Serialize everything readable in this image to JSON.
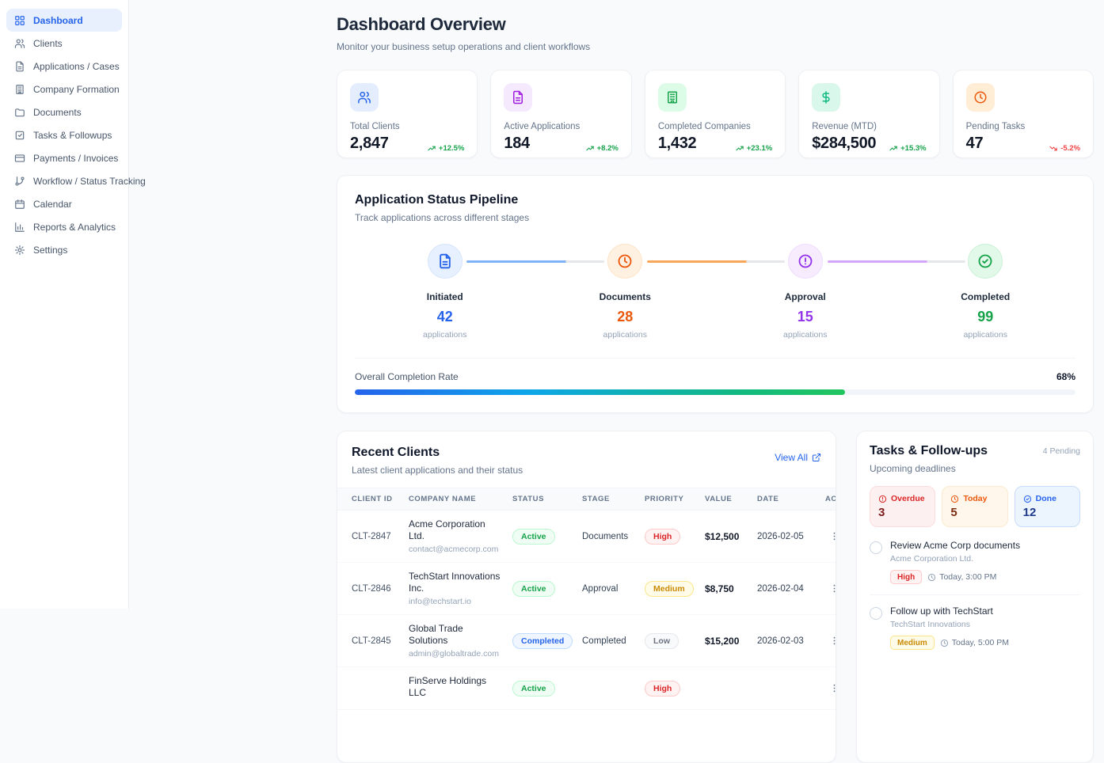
{
  "sidebar": {
    "items": [
      {
        "label": "Dashboard",
        "icon": "layout-grid-icon",
        "active": true
      },
      {
        "label": "Clients",
        "icon": "users-icon",
        "active": false
      },
      {
        "label": "Applications / Cases",
        "icon": "file-text-icon",
        "active": false
      },
      {
        "label": "Company Formation",
        "icon": "building-icon",
        "active": false
      },
      {
        "label": "Documents",
        "icon": "folder-icon",
        "active": false
      },
      {
        "label": "Tasks & Followups",
        "icon": "check-square-icon",
        "active": false
      },
      {
        "label": "Payments / Invoices",
        "icon": "credit-card-icon",
        "active": false
      },
      {
        "label": "Workflow / Status Tracking",
        "icon": "git-branch-icon",
        "active": false
      },
      {
        "label": "Calendar",
        "icon": "calendar-icon",
        "active": false
      },
      {
        "label": "Reports & Analytics",
        "icon": "bar-chart-icon",
        "active": false
      },
      {
        "label": "Settings",
        "icon": "gear-icon",
        "active": false
      }
    ]
  },
  "header": {
    "title": "Dashboard Overview",
    "subtitle": "Monitor your business setup operations and client workflows"
  },
  "stats": [
    {
      "label": "Total Clients",
      "value": "2,847",
      "trend": "+12.5%",
      "direction": "up",
      "icon": "users-icon",
      "accent": "#2563eb"
    },
    {
      "label": "Active Applications",
      "value": "184",
      "trend": "+8.2%",
      "direction": "up",
      "icon": "file-text-icon",
      "accent": "#a21ce0"
    },
    {
      "label": "Completed Companies",
      "value": "1,432",
      "trend": "+23.1%",
      "direction": "up",
      "icon": "building-icon",
      "accent": "#16a34a"
    },
    {
      "label": "Revenue (MTD)",
      "value": "$284,500",
      "trend": "+15.3%",
      "direction": "up",
      "icon": "dollar-icon",
      "accent": "#10b981"
    },
    {
      "label": "Pending Tasks",
      "value": "47",
      "trend": "-5.2%",
      "direction": "down",
      "icon": "clock-icon",
      "accent": "#ea580c"
    }
  ],
  "pipeline": {
    "title": "Application Status Pipeline",
    "subtitle": "Track applications across different stages",
    "stages": [
      {
        "label": "Initiated",
        "count": "42",
        "unit": "applications",
        "icon": "file-text-icon",
        "color": "#2563eb"
      },
      {
        "label": "Documents",
        "count": "28",
        "unit": "applications",
        "icon": "clock-icon",
        "color": "#ea580c"
      },
      {
        "label": "Approval",
        "count": "15",
        "unit": "applications",
        "icon": "alert-circle-icon",
        "color": "#9333ea"
      },
      {
        "label": "Completed",
        "count": "99",
        "unit": "applications",
        "icon": "check-circle-icon",
        "color": "#16a34a"
      }
    ],
    "completion": {
      "label": "Overall Completion Rate",
      "value": "68%",
      "percent": 68
    }
  },
  "recent_clients": {
    "title": "Recent Clients",
    "subtitle": "Latest client applications and their status",
    "view_all_label": "View All",
    "columns": [
      "Client ID",
      "Company Name",
      "Status",
      "Stage",
      "Priority",
      "Value",
      "Date",
      "Actions"
    ],
    "rows": [
      {
        "id": "CLT-2847",
        "company": "Acme Corporation Ltd.",
        "email": "contact@acmecorp.com",
        "status": "Active",
        "stage": "Documents",
        "priority": "High",
        "value": "$12,500",
        "date": "2026-02-05"
      },
      {
        "id": "CLT-2846",
        "company": "TechStart Innovations Inc.",
        "email": "info@techstart.io",
        "status": "Active",
        "stage": "Approval",
        "priority": "Medium",
        "value": "$8,750",
        "date": "2026-02-04"
      },
      {
        "id": "CLT-2845",
        "company": "Global Trade Solutions",
        "email": "admin@globaltrade.com",
        "status": "Completed",
        "stage": "Completed",
        "priority": "Low",
        "value": "$15,200",
        "date": "2026-02-03"
      },
      {
        "id": "",
        "company": "FinServe Holdings LLC",
        "email": "",
        "status": "Active",
        "stage": "",
        "priority": "High",
        "value": "",
        "date": ""
      }
    ]
  },
  "tasks": {
    "title": "Tasks & Follow-ups",
    "pending_badge": "4 Pending",
    "subtitle": "Upcoming deadlines",
    "summary": [
      {
        "label": "Overdue",
        "value": "3",
        "icon": "alert-circle-icon",
        "color": "#dc2626"
      },
      {
        "label": "Today",
        "value": "5",
        "icon": "clock-icon",
        "color": "#ea580c"
      },
      {
        "label": "Done",
        "value": "12",
        "icon": "check-circle-icon",
        "color": "#2563eb"
      }
    ],
    "items": [
      {
        "title": "Review Acme Corp documents",
        "company": "Acme Corporation Ltd.",
        "priority": "High",
        "due": "Today, 3:00 PM"
      },
      {
        "title": "Follow up with TechStart",
        "company": "TechStart Innovations",
        "priority": "Medium",
        "due": "Today, 5:00 PM"
      }
    ]
  }
}
